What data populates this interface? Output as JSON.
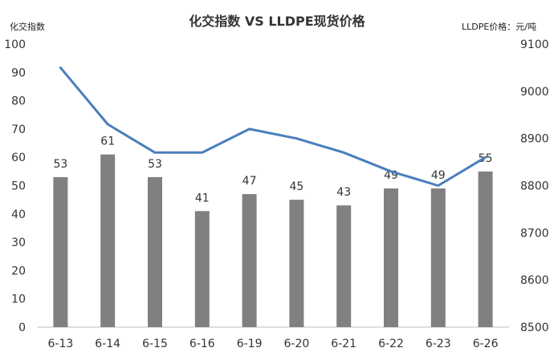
{
  "chart_data": {
    "type": "bar",
    "title": "化交指数 VS LLDPE现货价格",
    "left_axis_label": "化交指数",
    "right_axis_label": "LLDPE价格：元/吨",
    "categories": [
      "6-13",
      "6-14",
      "6-15",
      "6-16",
      "6-19",
      "6-20",
      "6-21",
      "6-22",
      "6-23",
      "6-26"
    ],
    "series": [
      {
        "type": "bar",
        "axis": "left",
        "values": [
          53,
          61,
          53,
          41,
          47,
          45,
          43,
          49,
          49,
          55
        ],
        "color": "#808080",
        "data_labels": [
          "53",
          "61",
          "53",
          "41",
          "47",
          "45",
          "43",
          "49",
          "49",
          "55"
        ]
      },
      {
        "type": "line",
        "axis": "right",
        "values": [
          9050,
          8930,
          8870,
          8870,
          8920,
          8900,
          8870,
          8830,
          8800,
          8860
        ],
        "color": "#4a7ebb"
      }
    ],
    "left_axis": {
      "min": 0,
      "max": 100,
      "step": 10,
      "ticks": [
        "0",
        "10",
        "20",
        "30",
        "40",
        "50",
        "60",
        "70",
        "80",
        "90",
        "100"
      ]
    },
    "right_axis": {
      "min": 8500,
      "max": 9100,
      "step": 100,
      "ticks": [
        "8500",
        "8600",
        "8700",
        "8800",
        "8900",
        "9000",
        "9100"
      ]
    },
    "grid": false,
    "legend": "none"
  }
}
